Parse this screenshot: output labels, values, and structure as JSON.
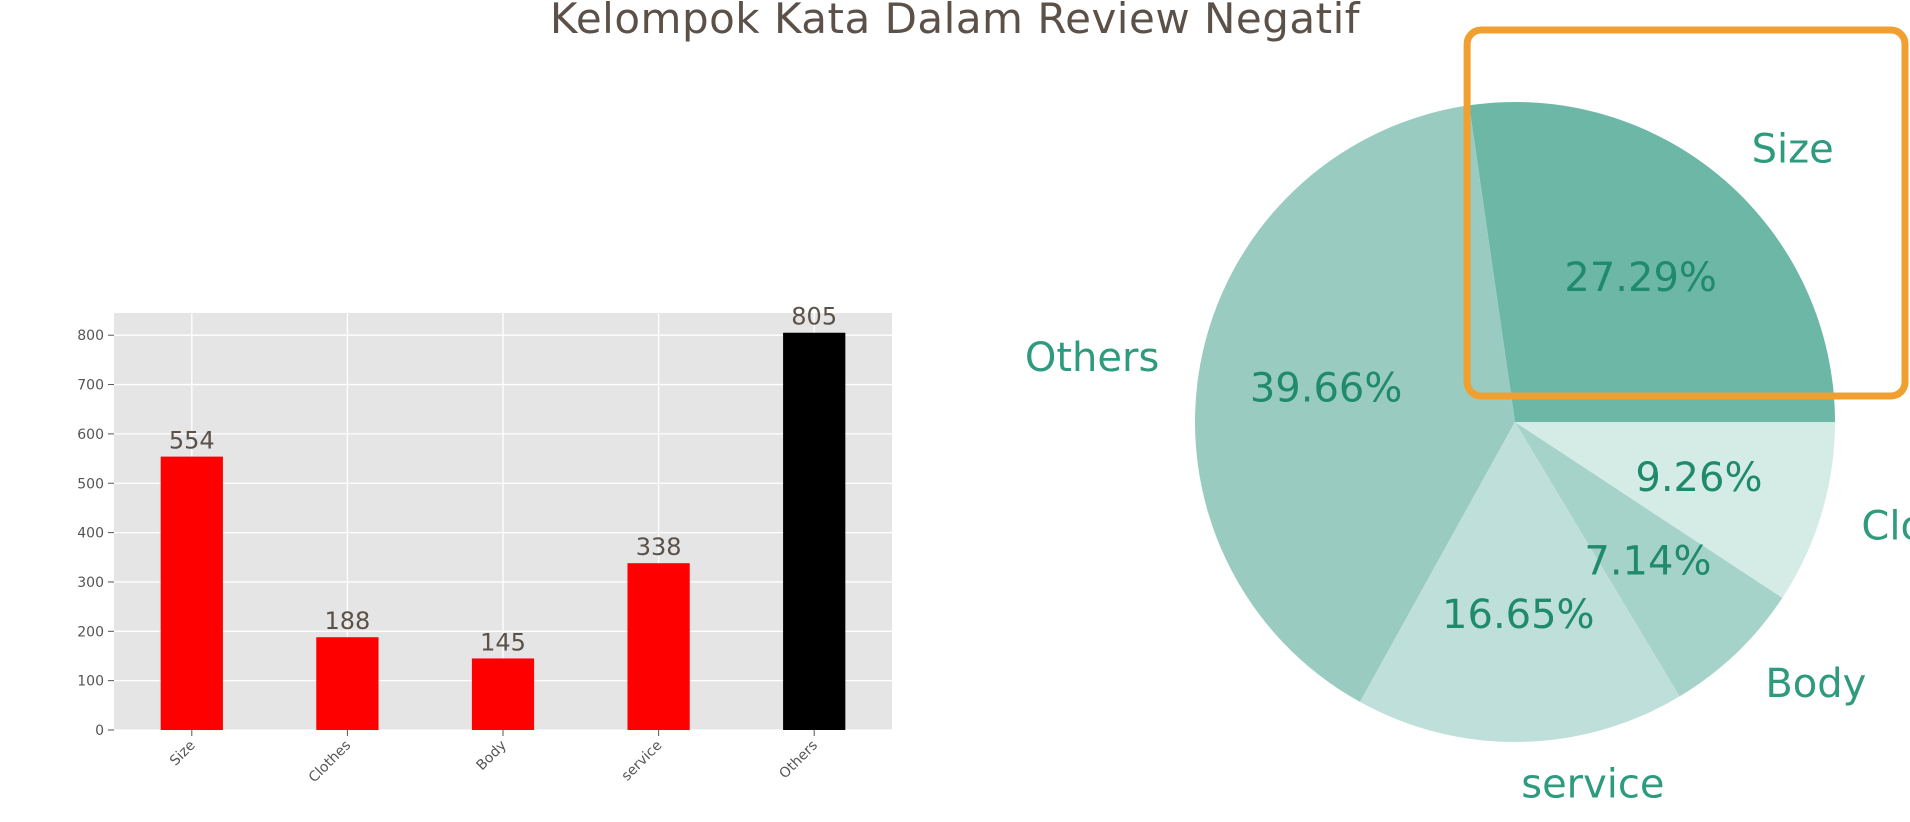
{
  "figure": {
    "title": "Kelompok Kata Dalam Review Negatif"
  },
  "chart_data": [
    {
      "type": "bar",
      "categories": [
        "Size",
        "Clothes",
        "Body",
        "service",
        "Others"
      ],
      "values": [
        554,
        188,
        145,
        338,
        805
      ],
      "colors": [
        "#ff0000",
        "#ff0000",
        "#ff0000",
        "#ff0000",
        "#000000"
      ],
      "yticks": [
        0,
        100,
        200,
        300,
        400,
        500,
        600,
        700,
        800
      ],
      "ylim": [
        0,
        845
      ],
      "grid": true,
      "background": "#e5e5e5"
    },
    {
      "type": "pie",
      "labels": [
        "Size",
        "Others",
        "service",
        "Body",
        "Clothes"
      ],
      "values": [
        27.29,
        39.66,
        16.65,
        7.14,
        9.26
      ],
      "pct_labels": [
        "27.29%",
        "39.66%",
        "16.65%",
        "7.14%",
        "9.26%"
      ],
      "colors": [
        "#6db7a7",
        "#99cbc0",
        "#bfe0da",
        "#a6d3c9",
        "#d5ebe6"
      ],
      "highlight": {
        "slice": "Size",
        "color": "#f0a030"
      }
    }
  ]
}
